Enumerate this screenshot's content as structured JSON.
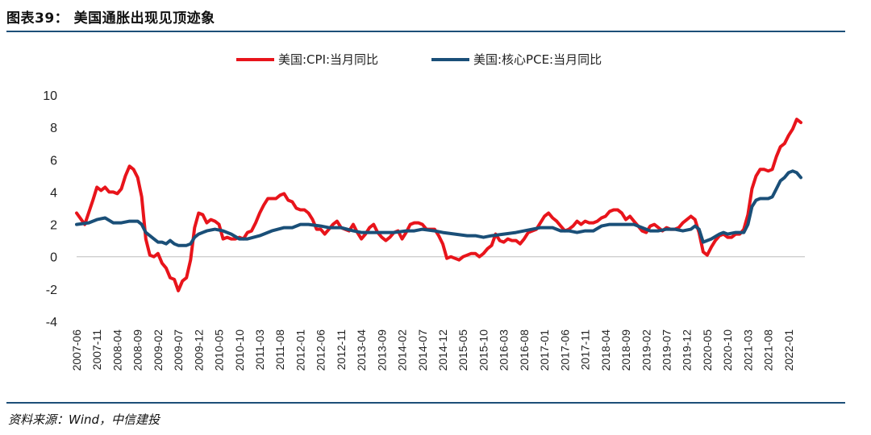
{
  "header": {
    "figure_label": "图表39：  美国通胀出现见顶迹象"
  },
  "footer": {
    "source": "资料来源：Wind，中信建投"
  },
  "chart_data": {
    "type": "line",
    "title": "",
    "xlabel": "",
    "ylabel": "",
    "ylim": [
      -4,
      10
    ],
    "yticks": [
      -4,
      -2,
      0,
      2,
      4,
      6,
      8,
      10
    ],
    "x_start": "2007-06",
    "x_end": "2022-05",
    "x_tick_labels": [
      "2007-06",
      "2007-11",
      "2008-04",
      "2008-09",
      "2009-02",
      "2009-07",
      "2009-12",
      "2010-05",
      "2010-10",
      "2011-03",
      "2011-08",
      "2012-01",
      "2012-06",
      "2012-11",
      "2013-04",
      "2013-09",
      "2014-02",
      "2014-07",
      "2014-12",
      "2015-05",
      "2015-10",
      "2016-03",
      "2016-08",
      "2017-01",
      "2017-06",
      "2017-11",
      "2018-04",
      "2018-09",
      "2019-02",
      "2019-07",
      "2019-12",
      "2020-05",
      "2020-10",
      "2021-03",
      "2021-08",
      "2022-01"
    ],
    "legend_position": "top-center",
    "grid": false,
    "series": [
      {
        "name": "美国:CPI:当月同比",
        "color": "#e8141b",
        "points": [
          [
            "2007-06",
            2.7
          ],
          [
            "2007-08",
            2.0
          ],
          [
            "2007-10",
            3.5
          ],
          [
            "2007-11",
            4.3
          ],
          [
            "2007-12",
            4.1
          ],
          [
            "2008-01",
            4.3
          ],
          [
            "2008-02",
            4.0
          ],
          [
            "2008-03",
            4.0
          ],
          [
            "2008-04",
            3.9
          ],
          [
            "2008-05",
            4.2
          ],
          [
            "2008-06",
            5.0
          ],
          [
            "2008-07",
            5.6
          ],
          [
            "2008-08",
            5.4
          ],
          [
            "2008-09",
            4.9
          ],
          [
            "2008-10",
            3.7
          ],
          [
            "2008-11",
            1.1
          ],
          [
            "2008-12",
            0.1
          ],
          [
            "2009-01",
            0.0
          ],
          [
            "2009-02",
            0.2
          ],
          [
            "2009-03",
            -0.4
          ],
          [
            "2009-04",
            -0.7
          ],
          [
            "2009-05",
            -1.3
          ],
          [
            "2009-06",
            -1.4
          ],
          [
            "2009-07",
            -2.1
          ],
          [
            "2009-08",
            -1.5
          ],
          [
            "2009-09",
            -1.3
          ],
          [
            "2009-10",
            -0.2
          ],
          [
            "2009-11",
            1.8
          ],
          [
            "2009-12",
            2.7
          ],
          [
            "2010-01",
            2.6
          ],
          [
            "2010-02",
            2.1
          ],
          [
            "2010-03",
            2.3
          ],
          [
            "2010-04",
            2.2
          ],
          [
            "2010-05",
            2.0
          ],
          [
            "2010-06",
            1.1
          ],
          [
            "2010-07",
            1.2
          ],
          [
            "2010-08",
            1.1
          ],
          [
            "2010-09",
            1.1
          ],
          [
            "2010-10",
            1.2
          ],
          [
            "2010-11",
            1.1
          ],
          [
            "2010-12",
            1.5
          ],
          [
            "2011-01",
            1.6
          ],
          [
            "2011-02",
            2.1
          ],
          [
            "2011-03",
            2.7
          ],
          [
            "2011-04",
            3.2
          ],
          [
            "2011-05",
            3.6
          ],
          [
            "2011-06",
            3.6
          ],
          [
            "2011-07",
            3.6
          ],
          [
            "2011-08",
            3.8
          ],
          [
            "2011-09",
            3.9
          ],
          [
            "2011-10",
            3.5
          ],
          [
            "2011-11",
            3.4
          ],
          [
            "2011-12",
            3.0
          ],
          [
            "2012-01",
            2.9
          ],
          [
            "2012-02",
            2.9
          ],
          [
            "2012-03",
            2.7
          ],
          [
            "2012-04",
            2.3
          ],
          [
            "2012-05",
            1.7
          ],
          [
            "2012-06",
            1.7
          ],
          [
            "2012-07",
            1.4
          ],
          [
            "2012-08",
            1.7
          ],
          [
            "2012-09",
            2.0
          ],
          [
            "2012-10",
            2.2
          ],
          [
            "2012-11",
            1.8
          ],
          [
            "2012-12",
            1.7
          ],
          [
            "2013-01",
            1.6
          ],
          [
            "2013-02",
            2.0
          ],
          [
            "2013-03",
            1.5
          ],
          [
            "2013-04",
            1.1
          ],
          [
            "2013-05",
            1.4
          ],
          [
            "2013-06",
            1.8
          ],
          [
            "2013-07",
            2.0
          ],
          [
            "2013-08",
            1.5
          ],
          [
            "2013-09",
            1.2
          ],
          [
            "2013-10",
            1.0
          ],
          [
            "2013-11",
            1.2
          ],
          [
            "2013-12",
            1.5
          ],
          [
            "2014-01",
            1.6
          ],
          [
            "2014-02",
            1.1
          ],
          [
            "2014-03",
            1.5
          ],
          [
            "2014-04",
            2.0
          ],
          [
            "2014-05",
            2.1
          ],
          [
            "2014-06",
            2.1
          ],
          [
            "2014-07",
            2.0
          ],
          [
            "2014-08",
            1.7
          ],
          [
            "2014-09",
            1.7
          ],
          [
            "2014-10",
            1.7
          ],
          [
            "2014-11",
            1.3
          ],
          [
            "2014-12",
            0.8
          ],
          [
            "2015-01",
            -0.1
          ],
          [
            "2015-02",
            0.0
          ],
          [
            "2015-03",
            -0.1
          ],
          [
            "2015-04",
            -0.2
          ],
          [
            "2015-05",
            0.0
          ],
          [
            "2015-06",
            0.1
          ],
          [
            "2015-07",
            0.2
          ],
          [
            "2015-08",
            0.2
          ],
          [
            "2015-09",
            0.0
          ],
          [
            "2015-10",
            0.2
          ],
          [
            "2015-11",
            0.5
          ],
          [
            "2015-12",
            0.7
          ],
          [
            "2016-01",
            1.4
          ],
          [
            "2016-02",
            1.0
          ],
          [
            "2016-03",
            0.9
          ],
          [
            "2016-04",
            1.1
          ],
          [
            "2016-05",
            1.0
          ],
          [
            "2016-06",
            1.0
          ],
          [
            "2016-07",
            0.8
          ],
          [
            "2016-08",
            1.1
          ],
          [
            "2016-09",
            1.5
          ],
          [
            "2016-10",
            1.6
          ],
          [
            "2016-11",
            1.7
          ],
          [
            "2016-12",
            2.1
          ],
          [
            "2017-01",
            2.5
          ],
          [
            "2017-02",
            2.7
          ],
          [
            "2017-03",
            2.4
          ],
          [
            "2017-04",
            2.2
          ],
          [
            "2017-05",
            1.9
          ],
          [
            "2017-06",
            1.6
          ],
          [
            "2017-07",
            1.7
          ],
          [
            "2017-08",
            1.9
          ],
          [
            "2017-09",
            2.2
          ],
          [
            "2017-10",
            2.0
          ],
          [
            "2017-11",
            2.2
          ],
          [
            "2017-12",
            2.1
          ],
          [
            "2018-01",
            2.1
          ],
          [
            "2018-02",
            2.2
          ],
          [
            "2018-03",
            2.4
          ],
          [
            "2018-04",
            2.5
          ],
          [
            "2018-05",
            2.8
          ],
          [
            "2018-06",
            2.9
          ],
          [
            "2018-07",
            2.9
          ],
          [
            "2018-08",
            2.7
          ],
          [
            "2018-09",
            2.3
          ],
          [
            "2018-10",
            2.5
          ],
          [
            "2018-11",
            2.2
          ],
          [
            "2018-12",
            1.9
          ],
          [
            "2019-01",
            1.6
          ],
          [
            "2019-02",
            1.5
          ],
          [
            "2019-03",
            1.9
          ],
          [
            "2019-04",
            2.0
          ],
          [
            "2019-05",
            1.8
          ],
          [
            "2019-06",
            1.6
          ],
          [
            "2019-07",
            1.8
          ],
          [
            "2019-08",
            1.7
          ],
          [
            "2019-09",
            1.7
          ],
          [
            "2019-10",
            1.8
          ],
          [
            "2019-11",
            2.1
          ],
          [
            "2019-12",
            2.3
          ],
          [
            "2020-01",
            2.5
          ],
          [
            "2020-02",
            2.3
          ],
          [
            "2020-03",
            1.5
          ],
          [
            "2020-04",
            0.3
          ],
          [
            "2020-05",
            0.1
          ],
          [
            "2020-06",
            0.6
          ],
          [
            "2020-07",
            1.0
          ],
          [
            "2020-08",
            1.3
          ],
          [
            "2020-09",
            1.4
          ],
          [
            "2020-10",
            1.2
          ],
          [
            "2020-11",
            1.2
          ],
          [
            "2020-12",
            1.4
          ],
          [
            "2021-01",
            1.4
          ],
          [
            "2021-02",
            1.7
          ],
          [
            "2021-03",
            2.6
          ],
          [
            "2021-04",
            4.2
          ],
          [
            "2021-05",
            5.0
          ],
          [
            "2021-06",
            5.4
          ],
          [
            "2021-07",
            5.4
          ],
          [
            "2021-08",
            5.3
          ],
          [
            "2021-09",
            5.4
          ],
          [
            "2021-10",
            6.2
          ],
          [
            "2021-11",
            6.8
          ],
          [
            "2021-12",
            7.0
          ],
          [
            "2022-01",
            7.5
          ],
          [
            "2022-02",
            7.9
          ],
          [
            "2022-03",
            8.5
          ],
          [
            "2022-04",
            8.3
          ]
        ]
      },
      {
        "name": "美国:核心PCE:当月同比",
        "color": "#1a4f78",
        "points": [
          [
            "2007-06",
            2.0
          ],
          [
            "2007-09",
            2.1
          ],
          [
            "2007-11",
            2.3
          ],
          [
            "2008-01",
            2.4
          ],
          [
            "2008-03",
            2.1
          ],
          [
            "2008-05",
            2.1
          ],
          [
            "2008-07",
            2.2
          ],
          [
            "2008-09",
            2.2
          ],
          [
            "2008-10",
            2.0
          ],
          [
            "2008-11",
            1.5
          ],
          [
            "2008-12",
            1.3
          ],
          [
            "2009-01",
            1.1
          ],
          [
            "2009-02",
            0.9
          ],
          [
            "2009-03",
            0.9
          ],
          [
            "2009-04",
            0.8
          ],
          [
            "2009-05",
            1.0
          ],
          [
            "2009-06",
            0.8
          ],
          [
            "2009-07",
            0.7
          ],
          [
            "2009-09",
            0.7
          ],
          [
            "2009-10",
            0.8
          ],
          [
            "2009-11",
            1.2
          ],
          [
            "2009-12",
            1.4
          ],
          [
            "2010-02",
            1.6
          ],
          [
            "2010-04",
            1.7
          ],
          [
            "2010-06",
            1.6
          ],
          [
            "2010-08",
            1.4
          ],
          [
            "2010-10",
            1.1
          ],
          [
            "2010-12",
            1.1
          ],
          [
            "2011-03",
            1.3
          ],
          [
            "2011-06",
            1.6
          ],
          [
            "2011-09",
            1.8
          ],
          [
            "2011-11",
            1.8
          ],
          [
            "2012-01",
            2.0
          ],
          [
            "2012-03",
            2.0
          ],
          [
            "2012-06",
            1.9
          ],
          [
            "2012-08",
            1.8
          ],
          [
            "2012-11",
            1.8
          ],
          [
            "2013-02",
            1.6
          ],
          [
            "2013-04",
            1.5
          ],
          [
            "2013-06",
            1.5
          ],
          [
            "2013-09",
            1.5
          ],
          [
            "2013-12",
            1.5
          ],
          [
            "2014-03",
            1.6
          ],
          [
            "2014-05",
            1.6
          ],
          [
            "2014-07",
            1.7
          ],
          [
            "2014-10",
            1.6
          ],
          [
            "2014-12",
            1.5
          ],
          [
            "2015-03",
            1.4
          ],
          [
            "2015-06",
            1.3
          ],
          [
            "2015-08",
            1.3
          ],
          [
            "2015-10",
            1.2
          ],
          [
            "2015-12",
            1.3
          ],
          [
            "2016-03",
            1.4
          ],
          [
            "2016-06",
            1.5
          ],
          [
            "2016-08",
            1.6
          ],
          [
            "2016-10",
            1.7
          ],
          [
            "2016-12",
            1.8
          ],
          [
            "2017-01",
            1.8
          ],
          [
            "2017-03",
            1.8
          ],
          [
            "2017-05",
            1.6
          ],
          [
            "2017-07",
            1.6
          ],
          [
            "2017-09",
            1.5
          ],
          [
            "2017-11",
            1.6
          ],
          [
            "2018-01",
            1.6
          ],
          [
            "2018-03",
            1.9
          ],
          [
            "2018-05",
            2.0
          ],
          [
            "2018-07",
            2.0
          ],
          [
            "2018-09",
            2.0
          ],
          [
            "2018-11",
            2.0
          ],
          [
            "2019-01",
            1.8
          ],
          [
            "2019-03",
            1.6
          ],
          [
            "2019-05",
            1.6
          ],
          [
            "2019-07",
            1.7
          ],
          [
            "2019-09",
            1.7
          ],
          [
            "2019-11",
            1.6
          ],
          [
            "2020-01",
            1.7
          ],
          [
            "2020-02",
            1.9
          ],
          [
            "2020-03",
            1.7
          ],
          [
            "2020-04",
            0.9
          ],
          [
            "2020-05",
            1.0
          ],
          [
            "2020-06",
            1.1
          ],
          [
            "2020-08",
            1.4
          ],
          [
            "2020-09",
            1.5
          ],
          [
            "2020-10",
            1.4
          ],
          [
            "2020-12",
            1.5
          ],
          [
            "2021-02",
            1.5
          ],
          [
            "2021-03",
            2.0
          ],
          [
            "2021-04",
            3.1
          ],
          [
            "2021-05",
            3.5
          ],
          [
            "2021-06",
            3.6
          ],
          [
            "2021-08",
            3.6
          ],
          [
            "2021-09",
            3.7
          ],
          [
            "2021-10",
            4.2
          ],
          [
            "2021-11",
            4.7
          ],
          [
            "2021-12",
            4.9
          ],
          [
            "2022-01",
            5.2
          ],
          [
            "2022-02",
            5.3
          ],
          [
            "2022-03",
            5.2
          ],
          [
            "2022-04",
            4.9
          ]
        ]
      }
    ]
  }
}
